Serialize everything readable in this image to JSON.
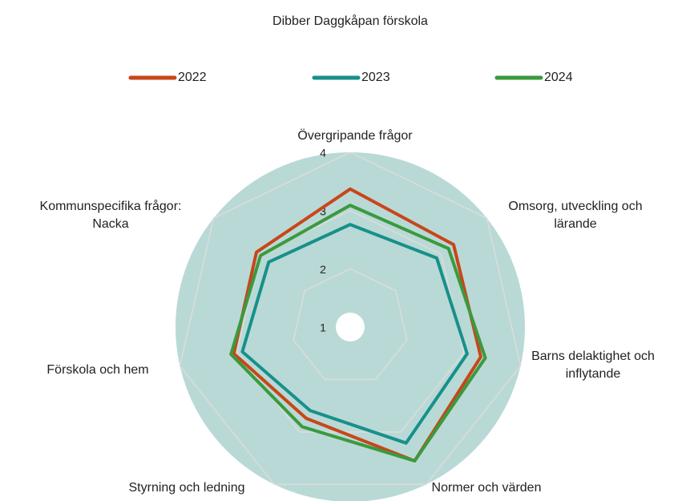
{
  "chart_data": {
    "type": "radar",
    "title": "Dibber Daggkåpan förskola",
    "categories": [
      "Övergripande frågor",
      "Omsorg, utveckling och\nlärande",
      "Barns delaktighet och\ninflytande",
      "Normer och värden",
      "Styrning och ledning",
      "Förskola och hem",
      "Kommunspecifika frågor:\nNacka"
    ],
    "series": [
      {
        "name": "2022",
        "color": "#c8461a",
        "values": [
          3.37,
          3.27,
          3.3,
          3.55,
          2.74,
          3.05,
          3.06
        ]
      },
      {
        "name": "2023",
        "color": "#17908a",
        "values": [
          2.76,
          2.9,
          3.06,
          3.21,
          2.59,
          2.9,
          2.79
        ]
      },
      {
        "name": "2024",
        "color": "#3a9a3e",
        "values": [
          3.09,
          3.16,
          3.38,
          3.55,
          2.9,
          3.1,
          2.97
        ]
      }
    ],
    "rlim": [
      1,
      4
    ],
    "rticks": [
      1,
      2,
      3,
      4
    ],
    "grid": true,
    "legend": "top",
    "background": "#b9d9d6"
  }
}
